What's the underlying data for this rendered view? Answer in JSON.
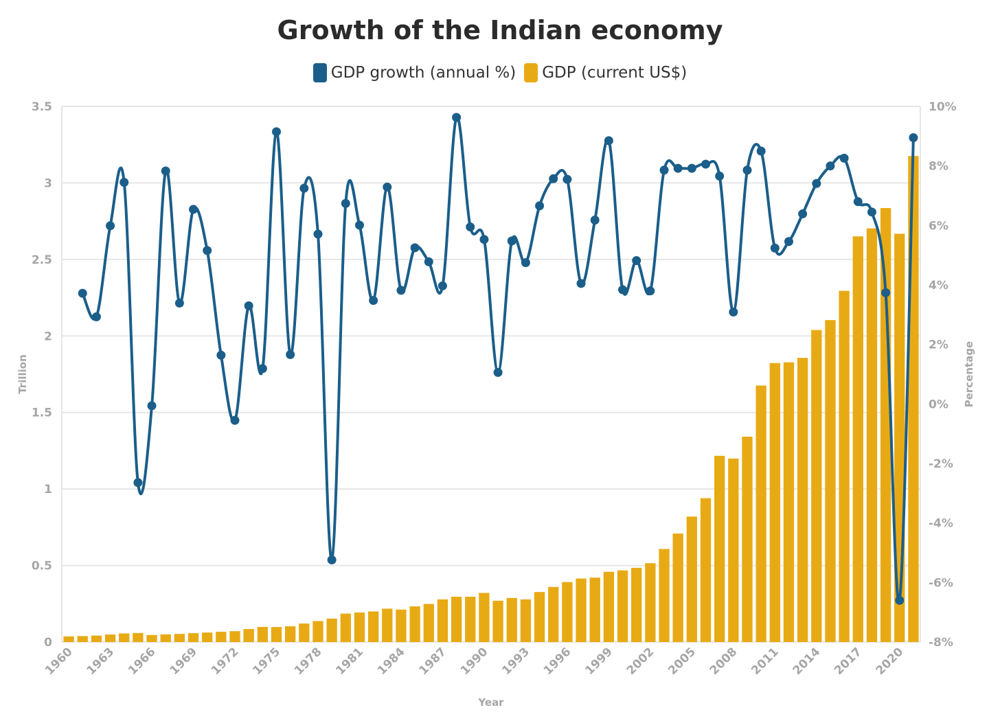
{
  "chart_data": {
    "type": "bar",
    "title": "Growth of the Indian economy",
    "xlabel": "Year",
    "ylabel_left": "Trillion",
    "ylabel_right": "Percentage",
    "legend_placement": "top-center",
    "grid": true,
    "ylim_left": [
      0,
      3.5
    ],
    "ylim_right": [
      -8,
      10
    ],
    "yticks_left": [
      "0",
      "0.5",
      "1",
      "1.5",
      "2",
      "2.5",
      "3",
      "3.5"
    ],
    "yticks_right": [
      "-8%",
      "-6%",
      "-4%",
      "-2%",
      "0%",
      "2%",
      "4%",
      "6%",
      "8%",
      "10%"
    ],
    "xticks": [
      "1960",
      "1963",
      "1966",
      "1969",
      "1972",
      "1975",
      "1978",
      "1981",
      "1984",
      "1987",
      "1990",
      "1993",
      "1996",
      "1999",
      "2002",
      "2005",
      "2008",
      "2011",
      "2014",
      "2017",
      "2020"
    ],
    "years": [
      1960,
      1961,
      1962,
      1963,
      1964,
      1965,
      1966,
      1967,
      1968,
      1969,
      1970,
      1971,
      1972,
      1973,
      1974,
      1975,
      1976,
      1977,
      1978,
      1979,
      1980,
      1981,
      1982,
      1983,
      1984,
      1985,
      1986,
      1987,
      1988,
      1989,
      1990,
      1991,
      1992,
      1993,
      1994,
      1995,
      1996,
      1997,
      1998,
      1999,
      2000,
      2001,
      2002,
      2003,
      2004,
      2005,
      2006,
      2007,
      2008,
      2009,
      2010,
      2011,
      2012,
      2013,
      2014,
      2015,
      2016,
      2017,
      2018,
      2019,
      2020,
      2021
    ],
    "series": [
      {
        "name": "GDP (current US$)",
        "kind": "bar",
        "axis": "left",
        "color": "#e8aa14",
        "values": [
          0.037,
          0.039,
          0.042,
          0.049,
          0.056,
          0.059,
          0.046,
          0.05,
          0.053,
          0.058,
          0.062,
          0.067,
          0.071,
          0.085,
          0.099,
          0.098,
          0.103,
          0.121,
          0.137,
          0.153,
          0.186,
          0.193,
          0.2,
          0.218,
          0.212,
          0.233,
          0.249,
          0.279,
          0.296,
          0.296,
          0.321,
          0.27,
          0.288,
          0.279,
          0.327,
          0.36,
          0.392,
          0.415,
          0.421,
          0.459,
          0.468,
          0.485,
          0.515,
          0.608,
          0.709,
          0.82,
          0.94,
          1.217,
          1.199,
          1.342,
          1.676,
          1.823,
          1.828,
          1.857,
          2.039,
          2.104,
          2.295,
          2.651,
          2.703,
          2.836,
          2.668,
          3.176
        ]
      },
      {
        "name": "GDP growth (annual %)",
        "kind": "line",
        "axis": "right",
        "color": "#1b5e8a",
        "values": [
          null,
          3.72,
          2.93,
          5.99,
          7.45,
          -2.64,
          -0.06,
          7.83,
          3.39,
          6.54,
          5.16,
          1.64,
          -0.55,
          3.3,
          1.19,
          9.15,
          1.66,
          7.25,
          5.71,
          -5.24,
          6.74,
          6.01,
          3.48,
          7.29,
          3.82,
          5.25,
          4.78,
          3.97,
          9.63,
          5.95,
          5.53,
          1.06,
          5.48,
          4.75,
          6.66,
          7.57,
          7.55,
          4.05,
          6.18,
          8.85,
          3.84,
          4.82,
          3.8,
          7.86,
          7.92,
          7.92,
          8.06,
          7.66,
          3.09,
          7.86,
          8.5,
          5.24,
          5.46,
          6.39,
          7.41,
          8.0,
          8.26,
          6.8,
          6.45,
          3.74,
          -6.6,
          8.95
        ]
      }
    ]
  }
}
